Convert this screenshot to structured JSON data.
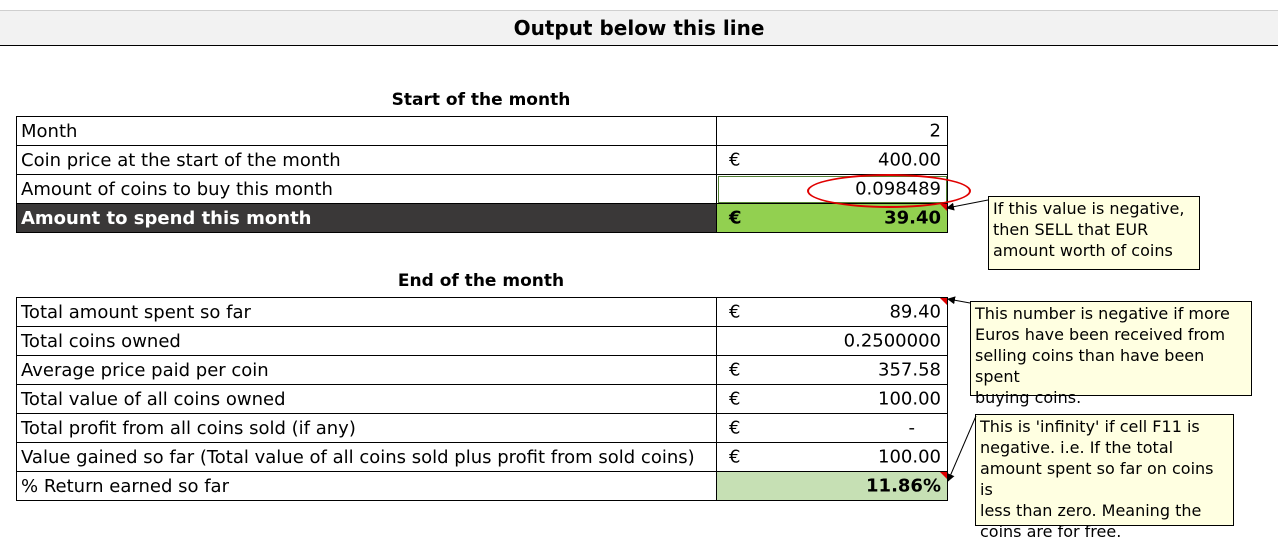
{
  "banner": {
    "title": "Output below this line"
  },
  "start": {
    "title": "Start of the month",
    "rows": [
      {
        "label": "Month",
        "currency": "",
        "value": "2"
      },
      {
        "label": "Coin price at the start of the month",
        "currency": "€",
        "value": "400.00"
      },
      {
        "label": "Amount of coins to buy this month",
        "currency": "",
        "value": "0.098489"
      },
      {
        "label": "Amount to spend this month",
        "currency": "€",
        "value": "39.40"
      }
    ]
  },
  "end": {
    "title": "End of the month",
    "rows": [
      {
        "label": "Total amount spent so far",
        "currency": "€",
        "value": "89.40"
      },
      {
        "label": "Total coins owned",
        "currency": "",
        "value": "0.2500000"
      },
      {
        "label": "Average price paid per coin",
        "currency": "€",
        "value": "357.58"
      },
      {
        "label": "Total value of all coins owned",
        "currency": "€",
        "value": "100.00"
      },
      {
        "label": "Total profit from all coins sold (if any)",
        "currency": "€",
        "value": "-"
      },
      {
        "label": "Value gained so far (Total value of all coins sold plus profit from sold coins)",
        "currency": "€",
        "value": "100.00"
      },
      {
        "label": "% Return earned so far",
        "currency": "",
        "value": "11.86%"
      }
    ]
  },
  "notes": {
    "sell": "If this value is negative,\nthen SELL that EUR\namount worth of coins",
    "negative": "This number is negative if more\nEuros have been received from\nselling coins than have been spent\nbuying coins.",
    "infinity": "This is 'infinity' if cell F11 is\nnegative. i.e. If the total\namount spent so far on coins is\nless than zero. Meaning the\ncoins are for free."
  },
  "colors": {
    "dark_row": "#3a3838",
    "bright_green": "#92d050",
    "light_green": "#c6e0b4",
    "comment_bg": "#ffffe1",
    "indicator_red": "#e00000"
  }
}
